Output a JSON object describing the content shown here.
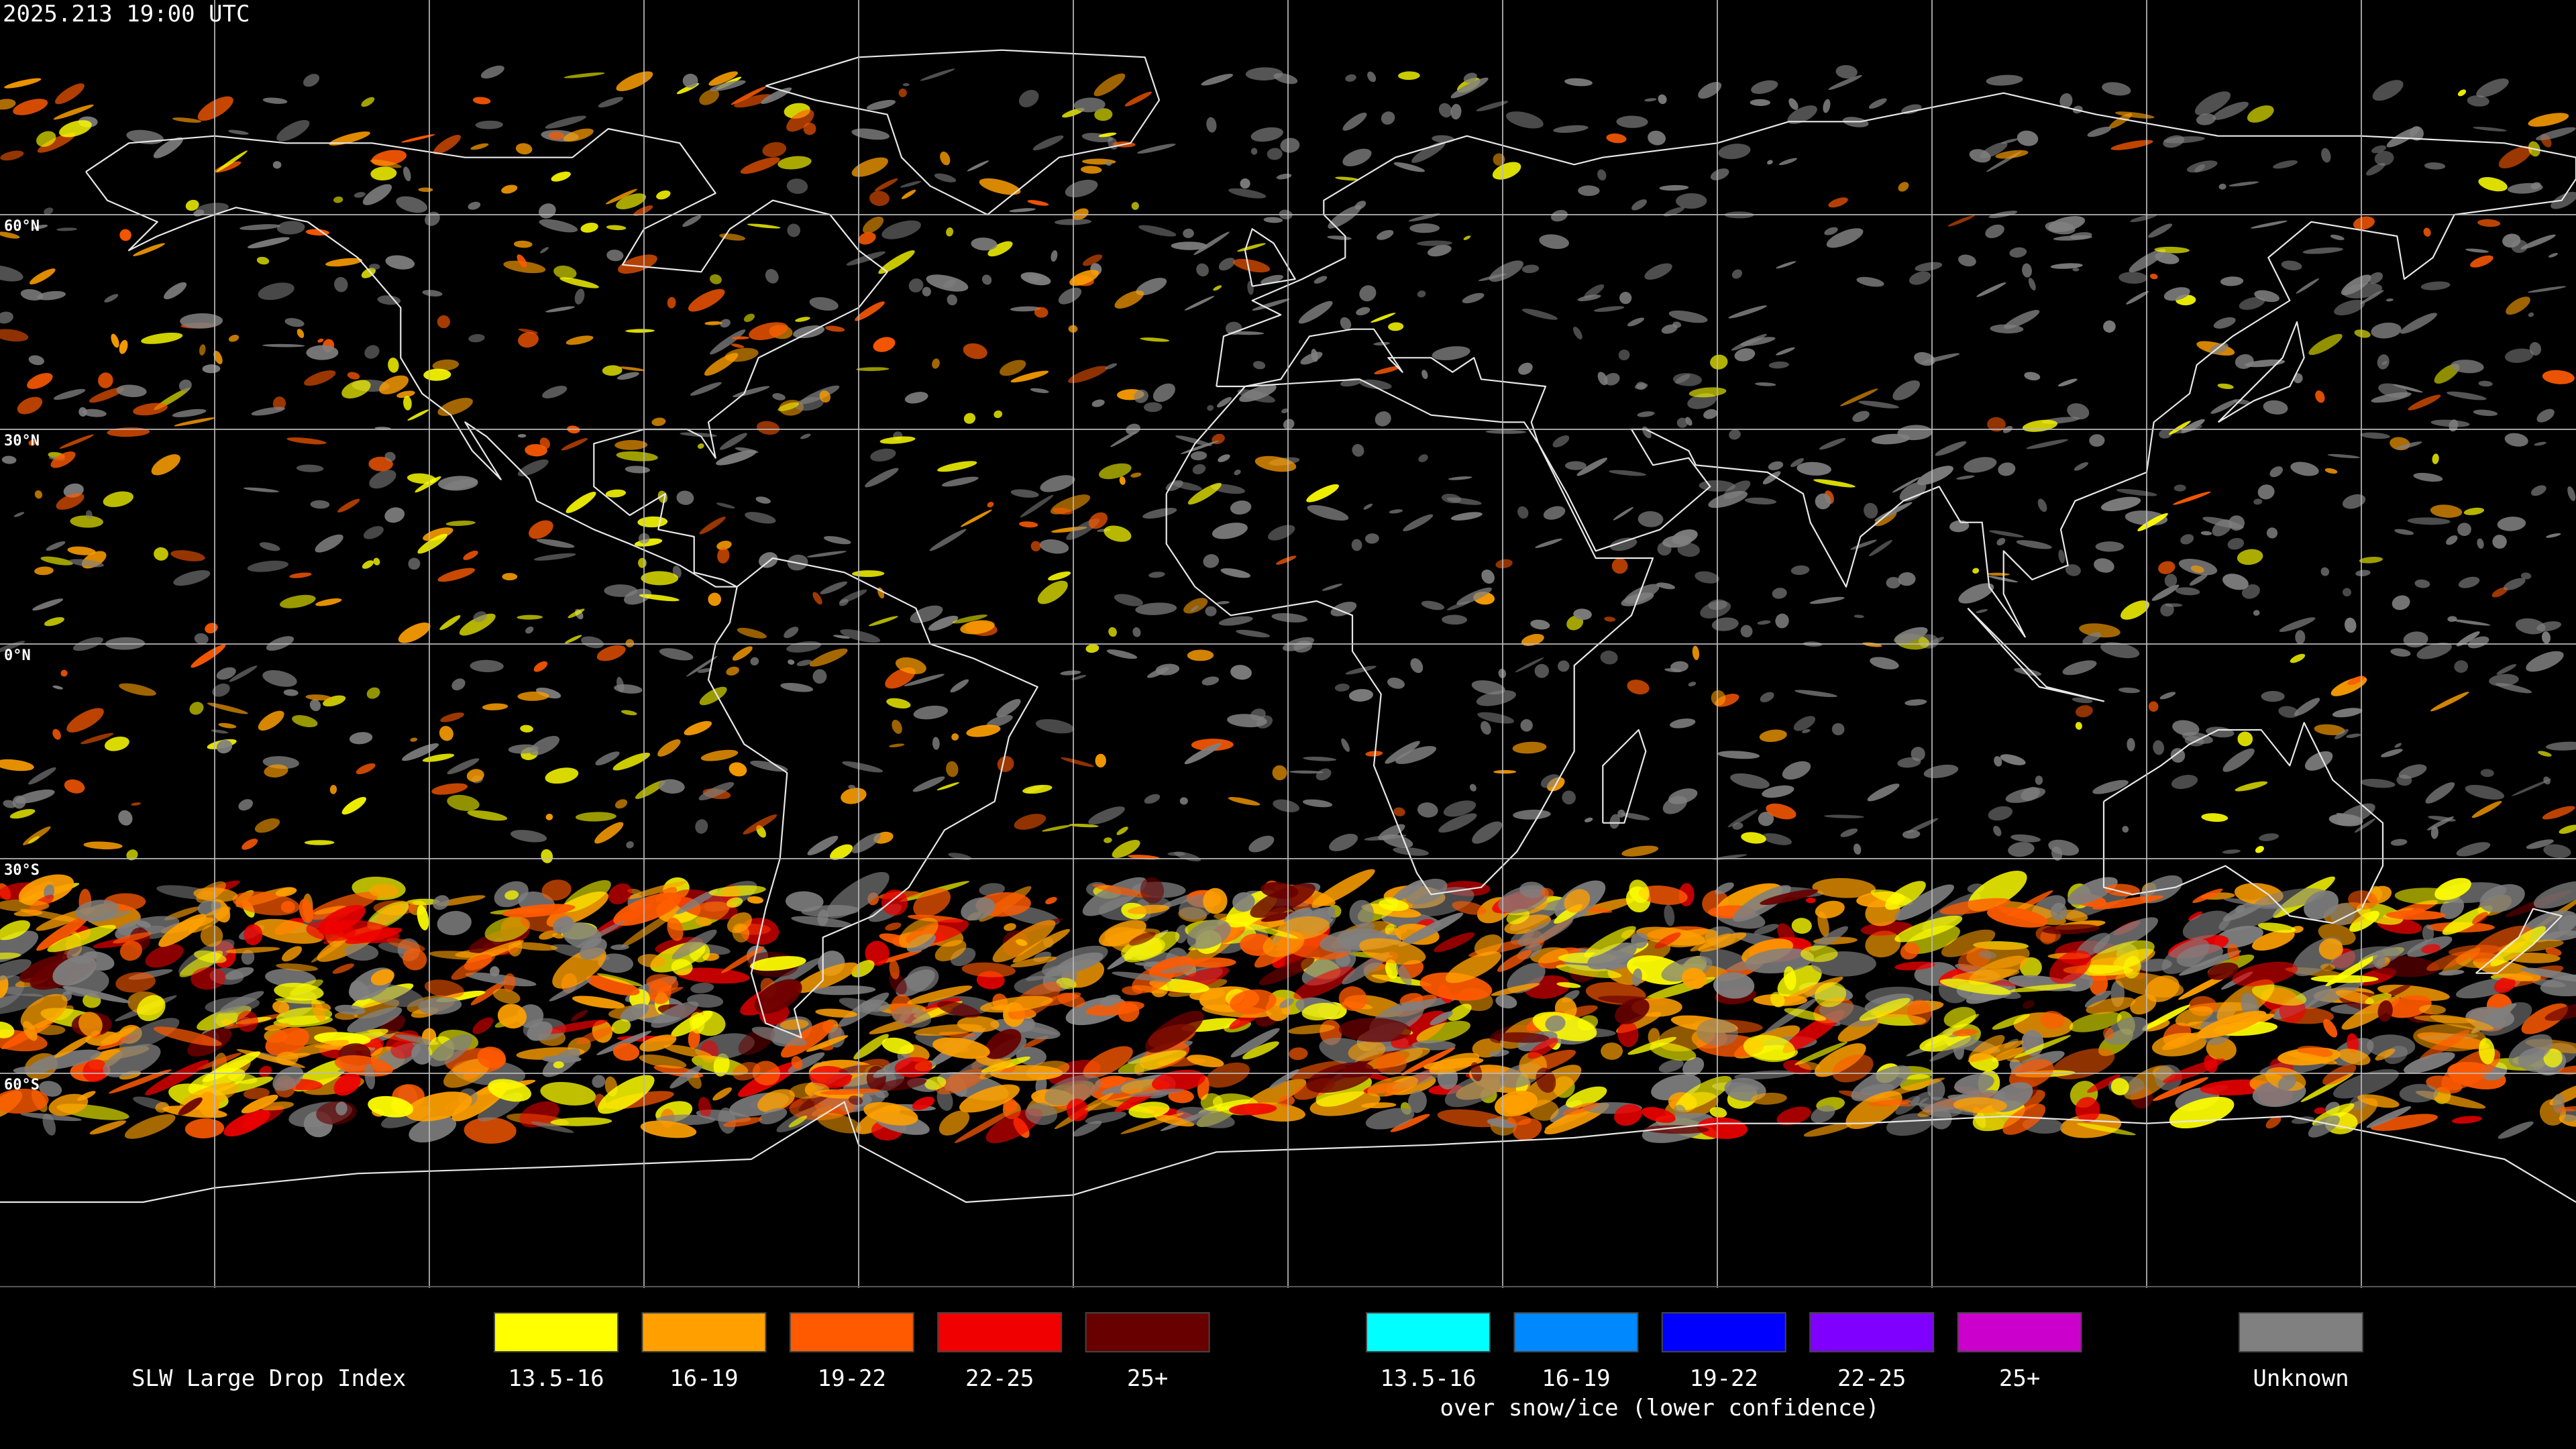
{
  "header": {
    "timestamp": "2025.213 19:00 UTC"
  },
  "map": {
    "lat_labels": [
      "60°N",
      "30°N",
      "0°N",
      "30°S",
      "60°S"
    ]
  },
  "legend": {
    "title": "SLW Large Drop Index",
    "items": [
      {
        "label": "13.5-16",
        "color": "#ffff00"
      },
      {
        "label": "16-19",
        "color": "#ffa000"
      },
      {
        "label": "19-22",
        "color": "#ff5a00"
      },
      {
        "label": "22-25",
        "color": "#f00000"
      },
      {
        "label": "25+",
        "color": "#680000"
      }
    ],
    "snow_items": [
      {
        "label": "13.5-16",
        "color": "#00ffff"
      },
      {
        "label": "16-19",
        "color": "#0088ff"
      },
      {
        "label": "19-22",
        "color": "#0000ff"
      },
      {
        "label": "22-25",
        "color": "#8000ff"
      },
      {
        "label": "25+",
        "color": "#cc00cc"
      }
    ],
    "snow_note": "over snow/ice (lower confidence)",
    "unknown": {
      "label": "Unknown",
      "color": "#808080"
    }
  }
}
